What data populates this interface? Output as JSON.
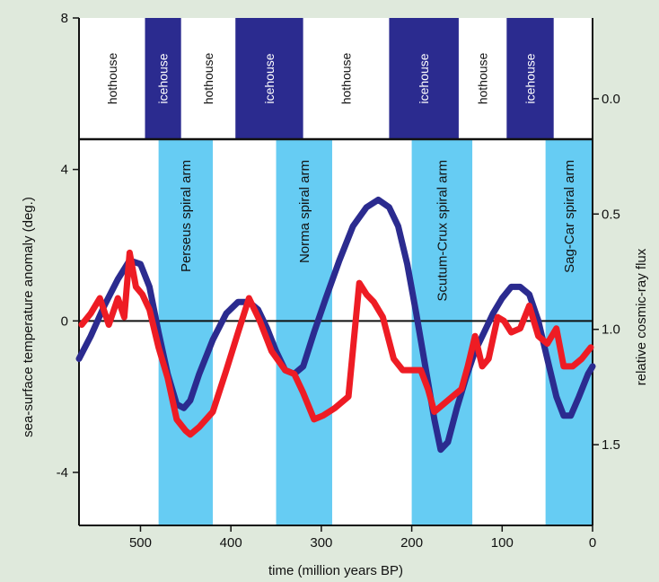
{
  "chart_data": {
    "type": "line",
    "xlabel": "time (million years BP)",
    "ylabel_left": "sea-surface temperature anomaly (deg.)",
    "ylabel_right": "relative cosmic-ray flux",
    "x_range": [
      568,
      0
    ],
    "x_reversed": true,
    "y_left_range": [
      -5.4,
      8
    ],
    "y_left_ticks": [
      8,
      4,
      0,
      -4
    ],
    "y_right_range": [
      -0.35,
      1.85
    ],
    "y_right_inverted": true,
    "y_right_ticks": [
      0.0,
      0.5,
      1.0,
      1.5
    ],
    "y_right_tick_labels": [
      "0.0",
      "0.5",
      "1.0",
      "1.5"
    ],
    "x_ticks": [
      500,
      400,
      300,
      200,
      100,
      0
    ],
    "climate_bands": [
      {
        "label": "hothouse",
        "start": 568,
        "end": 495,
        "kind": "hothouse"
      },
      {
        "label": "icehouse",
        "start": 495,
        "end": 455,
        "kind": "icehouse"
      },
      {
        "label": "hothouse",
        "start": 455,
        "end": 395,
        "kind": "hothouse"
      },
      {
        "label": "icehouse",
        "start": 395,
        "end": 320,
        "kind": "icehouse"
      },
      {
        "label": "hothouse",
        "start": 320,
        "end": 225,
        "kind": "hothouse"
      },
      {
        "label": "icehouse",
        "start": 225,
        "end": 148,
        "kind": "icehouse"
      },
      {
        "label": "hothouse",
        "start": 148,
        "end": 95,
        "kind": "hothouse"
      },
      {
        "label": "icehouse",
        "start": 95,
        "end": 43,
        "kind": "icehouse"
      }
    ],
    "spiral_arms": [
      {
        "label": "Perseus spiral arm",
        "start": 480,
        "end": 420
      },
      {
        "label": "Norma spiral arm",
        "start": 350,
        "end": 288
      },
      {
        "label": "Scutum-Crux spiral arm",
        "start": 200,
        "end": 133
      },
      {
        "label": "Sag-Car spiral arm",
        "start": 52,
        "end": 0
      }
    ],
    "series": [
      {
        "color": "#2b2b8f",
        "axis": "left",
        "x": [
          568,
          555,
          540,
          525,
          512,
          500,
          490,
          480,
          470,
          460,
          452,
          445,
          435,
          420,
          405,
          392,
          380,
          370,
          360,
          350,
          340,
          330,
          320,
          308,
          295,
          280,
          265,
          250,
          237,
          225,
          215,
          205,
          195,
          185,
          175,
          168,
          160,
          150,
          140,
          130,
          120,
          110,
          100,
          90,
          80,
          70,
          60,
          50,
          40,
          32,
          24,
          15,
          5,
          0
        ],
        "y": [
          -1.0,
          -0.4,
          0.4,
          1.1,
          1.6,
          1.5,
          0.9,
          -0.3,
          -1.4,
          -2.2,
          -2.3,
          -2.1,
          -1.4,
          -0.5,
          0.2,
          0.5,
          0.5,
          0.3,
          -0.2,
          -0.8,
          -1.3,
          -1.4,
          -1.2,
          -0.3,
          0.6,
          1.6,
          2.5,
          3.0,
          3.2,
          3.0,
          2.5,
          1.5,
          0.2,
          -1.2,
          -2.6,
          -3.4,
          -3.2,
          -2.3,
          -1.5,
          -0.8,
          -0.3,
          0.2,
          0.6,
          0.9,
          0.9,
          0.7,
          0.0,
          -1.0,
          -2.0,
          -2.5,
          -2.5,
          -2.0,
          -1.4,
          -1.2
        ]
      },
      {
        "color": "#ee1c24",
        "axis": "left",
        "x": [
          565,
          555,
          545,
          535,
          525,
          518,
          512,
          505,
          498,
          490,
          480,
          470,
          460,
          450,
          445,
          435,
          420,
          405,
          392,
          380,
          368,
          355,
          340,
          330,
          320,
          308,
          298,
          285,
          270,
          258,
          250,
          242,
          232,
          220,
          210,
          200,
          190,
          182,
          175,
          165,
          155,
          145,
          138,
          130,
          122,
          115,
          105,
          98,
          90,
          80,
          70,
          60,
          50,
          40,
          32,
          22,
          12,
          2
        ],
        "y": [
          -0.1,
          0.2,
          0.6,
          -0.1,
          0.6,
          0.1,
          1.8,
          0.9,
          0.7,
          0.3,
          -0.7,
          -1.5,
          -2.6,
          -2.9,
          -3.0,
          -2.8,
          -2.4,
          -1.3,
          -0.3,
          0.6,
          0.0,
          -0.8,
          -1.3,
          -1.4,
          -1.9,
          -2.6,
          -2.5,
          -2.3,
          -2.0,
          1.0,
          0.7,
          0.5,
          0.1,
          -1.0,
          -1.3,
          -1.3,
          -1.3,
          -1.8,
          -2.4,
          -2.2,
          -2.0,
          -1.8,
          -1.2,
          -0.4,
          -1.2,
          -1.0,
          0.1,
          0.0,
          -0.3,
          -0.2,
          0.4,
          -0.4,
          -0.6,
          -0.2,
          -1.2,
          -1.2,
          -1.0,
          -0.7
        ]
      }
    ]
  }
}
